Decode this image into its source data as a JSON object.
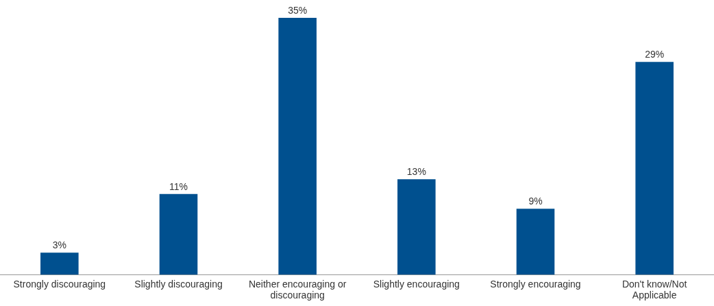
{
  "chart_data": {
    "type": "bar",
    "categories": [
      "Strongly discouraging",
      "Slightly discouraging",
      "Neither encouraging or discouraging",
      "Slightly encouraging",
      "Strongly encouraging",
      "Don't know/Not Applicable"
    ],
    "values": [
      3,
      11,
      35,
      13,
      9,
      29
    ],
    "value_labels": [
      "3%",
      "11%",
      "35%",
      "13%",
      "9%",
      "29%"
    ],
    "color": "#00508f",
    "tick_labels": "x",
    "grid": false,
    "legend": false
  }
}
